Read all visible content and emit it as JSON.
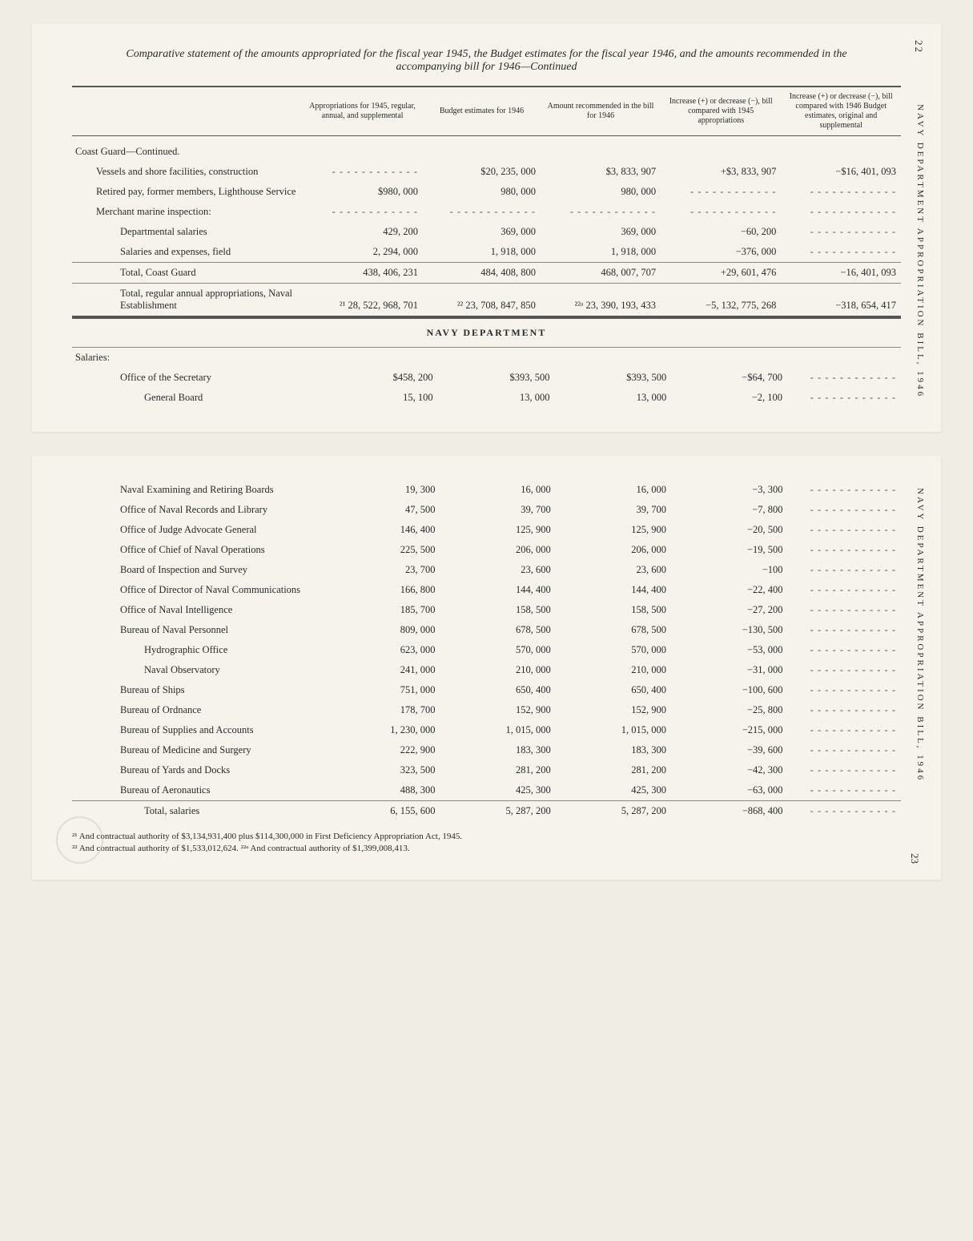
{
  "title": "Comparative statement of the amounts appropriated for the fiscal year 1945, the Budget estimates for the fiscal year 1946, and the amounts recommended in the accompanying bill for 1946—Continued",
  "side_label": "NAVY DEPARTMENT APPROPRIATION BILL, 1946",
  "page_top": "22",
  "page_bottom": "23",
  "columns": [
    "",
    "Appropriations for 1945, regular, annual, and supplemental",
    "Budget estimates for 1946",
    "Amount recommended in the bill for 1946",
    "Increase (+) or decrease (−), bill compared with 1945 appropriations",
    "Increase (+) or decrease (−), bill compared with 1946 Budget estimates, original and supplemental"
  ],
  "section1_header": "Coast Guard—Continued.",
  "rows1": [
    {
      "label": "Vessels and shore facilities, construction",
      "indent": 1,
      "c1": "",
      "c2": "$20, 235, 000",
      "c3": "$3, 833, 907",
      "c4": "+$3, 833, 907",
      "c5": "−$16, 401, 093"
    },
    {
      "label": "Retired pay, former members, Lighthouse Service",
      "indent": 1,
      "c1": "$980, 000",
      "c2": "980, 000",
      "c3": "980, 000",
      "c4": "",
      "c5": ""
    },
    {
      "label": "Merchant marine inspection:",
      "indent": 1,
      "c1": "",
      "c2": "",
      "c3": "",
      "c4": "",
      "c5": ""
    },
    {
      "label": "Departmental salaries",
      "indent": 2,
      "c1": "429, 200",
      "c2": "369, 000",
      "c3": "369, 000",
      "c4": "−60, 200",
      "c5": ""
    },
    {
      "label": "Salaries and expenses, field",
      "indent": 2,
      "c1": "2, 294, 000",
      "c2": "1, 918, 000",
      "c3": "1, 918, 000",
      "c4": "−376, 000",
      "c5": ""
    },
    {
      "label": "Total, Coast Guard",
      "indent": 2,
      "sep": true,
      "c1": "438, 406, 231",
      "c2": "484, 408, 800",
      "c3": "468, 007, 707",
      "c4": "+29, 601, 476",
      "c5": "−16, 401, 093"
    },
    {
      "label": "Total, regular annual appropriations, Naval Establishment",
      "indent": 2,
      "sep": true,
      "botheavy": true,
      "c1": "²¹ 28, 522, 968, 701",
      "c2": "²² 23, 708, 847, 850",
      "c3": "²²ᵃ 23, 390, 193, 433",
      "c4": "−5, 132, 775, 268",
      "c5": "−318, 654, 417"
    }
  ],
  "section2_title": "NAVY DEPARTMENT",
  "section2_header": "Salaries:",
  "rows2a": [
    {
      "label": "Office of the Secretary",
      "indent": 2,
      "c1": "$458, 200",
      "c2": "$393, 500",
      "c3": "$393, 500",
      "c4": "−$64, 700",
      "c5": ""
    },
    {
      "label": "General Board",
      "indent": 3,
      "c1": "15, 100",
      "c2": "13, 000",
      "c3": "13, 000",
      "c4": "−2, 100",
      "c5": ""
    }
  ],
  "rows2b": [
    {
      "label": "Naval Examining and Retiring Boards",
      "indent": 2,
      "c1": "19, 300",
      "c2": "16, 000",
      "c3": "16, 000",
      "c4": "−3, 300",
      "c5": ""
    },
    {
      "label": "Office of Naval Records and Library",
      "indent": 2,
      "c1": "47, 500",
      "c2": "39, 700",
      "c3": "39, 700",
      "c4": "−7, 800",
      "c5": ""
    },
    {
      "label": "Office of Judge Advocate General",
      "indent": 2,
      "c1": "146, 400",
      "c2": "125, 900",
      "c3": "125, 900",
      "c4": "−20, 500",
      "c5": ""
    },
    {
      "label": "Office of Chief of Naval Operations",
      "indent": 2,
      "c1": "225, 500",
      "c2": "206, 000",
      "c3": "206, 000",
      "c4": "−19, 500",
      "c5": ""
    },
    {
      "label": "Board of Inspection and Survey",
      "indent": 2,
      "c1": "23, 700",
      "c2": "23, 600",
      "c3": "23, 600",
      "c4": "−100",
      "c5": ""
    },
    {
      "label": "Office of Director of Naval Communications",
      "indent": 2,
      "c1": "166, 800",
      "c2": "144, 400",
      "c3": "144, 400",
      "c4": "−22, 400",
      "c5": ""
    },
    {
      "label": "Office of Naval Intelligence",
      "indent": 2,
      "c1": "185, 700",
      "c2": "158, 500",
      "c3": "158, 500",
      "c4": "−27, 200",
      "c5": ""
    },
    {
      "label": "Bureau of Naval Personnel",
      "indent": 2,
      "c1": "809, 000",
      "c2": "678, 500",
      "c3": "678, 500",
      "c4": "−130, 500",
      "c5": ""
    },
    {
      "label": "Hydrographic Office",
      "indent": 3,
      "c1": "623, 000",
      "c2": "570, 000",
      "c3": "570, 000",
      "c4": "−53, 000",
      "c5": ""
    },
    {
      "label": "Naval Observatory",
      "indent": 3,
      "c1": "241, 000",
      "c2": "210, 000",
      "c3": "210, 000",
      "c4": "−31, 000",
      "c5": ""
    },
    {
      "label": "Bureau of Ships",
      "indent": 2,
      "c1": "751, 000",
      "c2": "650, 400",
      "c3": "650, 400",
      "c4": "−100, 600",
      "c5": ""
    },
    {
      "label": "Bureau of Ordnance",
      "indent": 2,
      "c1": "178, 700",
      "c2": "152, 900",
      "c3": "152, 900",
      "c4": "−25, 800",
      "c5": ""
    },
    {
      "label": "Bureau of Supplies and Accounts",
      "indent": 2,
      "c1": "1, 230, 000",
      "c2": "1, 015, 000",
      "c3": "1, 015, 000",
      "c4": "−215, 000",
      "c5": ""
    },
    {
      "label": "Bureau of Medicine and Surgery",
      "indent": 2,
      "c1": "222, 900",
      "c2": "183, 300",
      "c3": "183, 300",
      "c4": "−39, 600",
      "c5": ""
    },
    {
      "label": "Bureau of Yards and Docks",
      "indent": 2,
      "c1": "323, 500",
      "c2": "281, 200",
      "c3": "281, 200",
      "c4": "−42, 300",
      "c5": ""
    },
    {
      "label": "Bureau of Aeronautics",
      "indent": 2,
      "c1": "488, 300",
      "c2": "425, 300",
      "c3": "425, 300",
      "c4": "−63, 000",
      "c5": ""
    },
    {
      "label": "Total, salaries",
      "indent": 3,
      "sep": true,
      "c1": "6, 155, 600",
      "c2": "5, 287, 200",
      "c3": "5, 287, 200",
      "c4": "−868, 400",
      "c5": ""
    }
  ],
  "footnotes": [
    "²¹ And contractual authority of $3,134,931,400 plus $114,300,000 in First Deficiency Appropriation Act, 1945.",
    "²² And contractual authority of $1,533,012,624.            ²²ᵃ And contractual authority of $1,399,008,413."
  ],
  "dash_fill": "- - - - - - - - - - - -"
}
